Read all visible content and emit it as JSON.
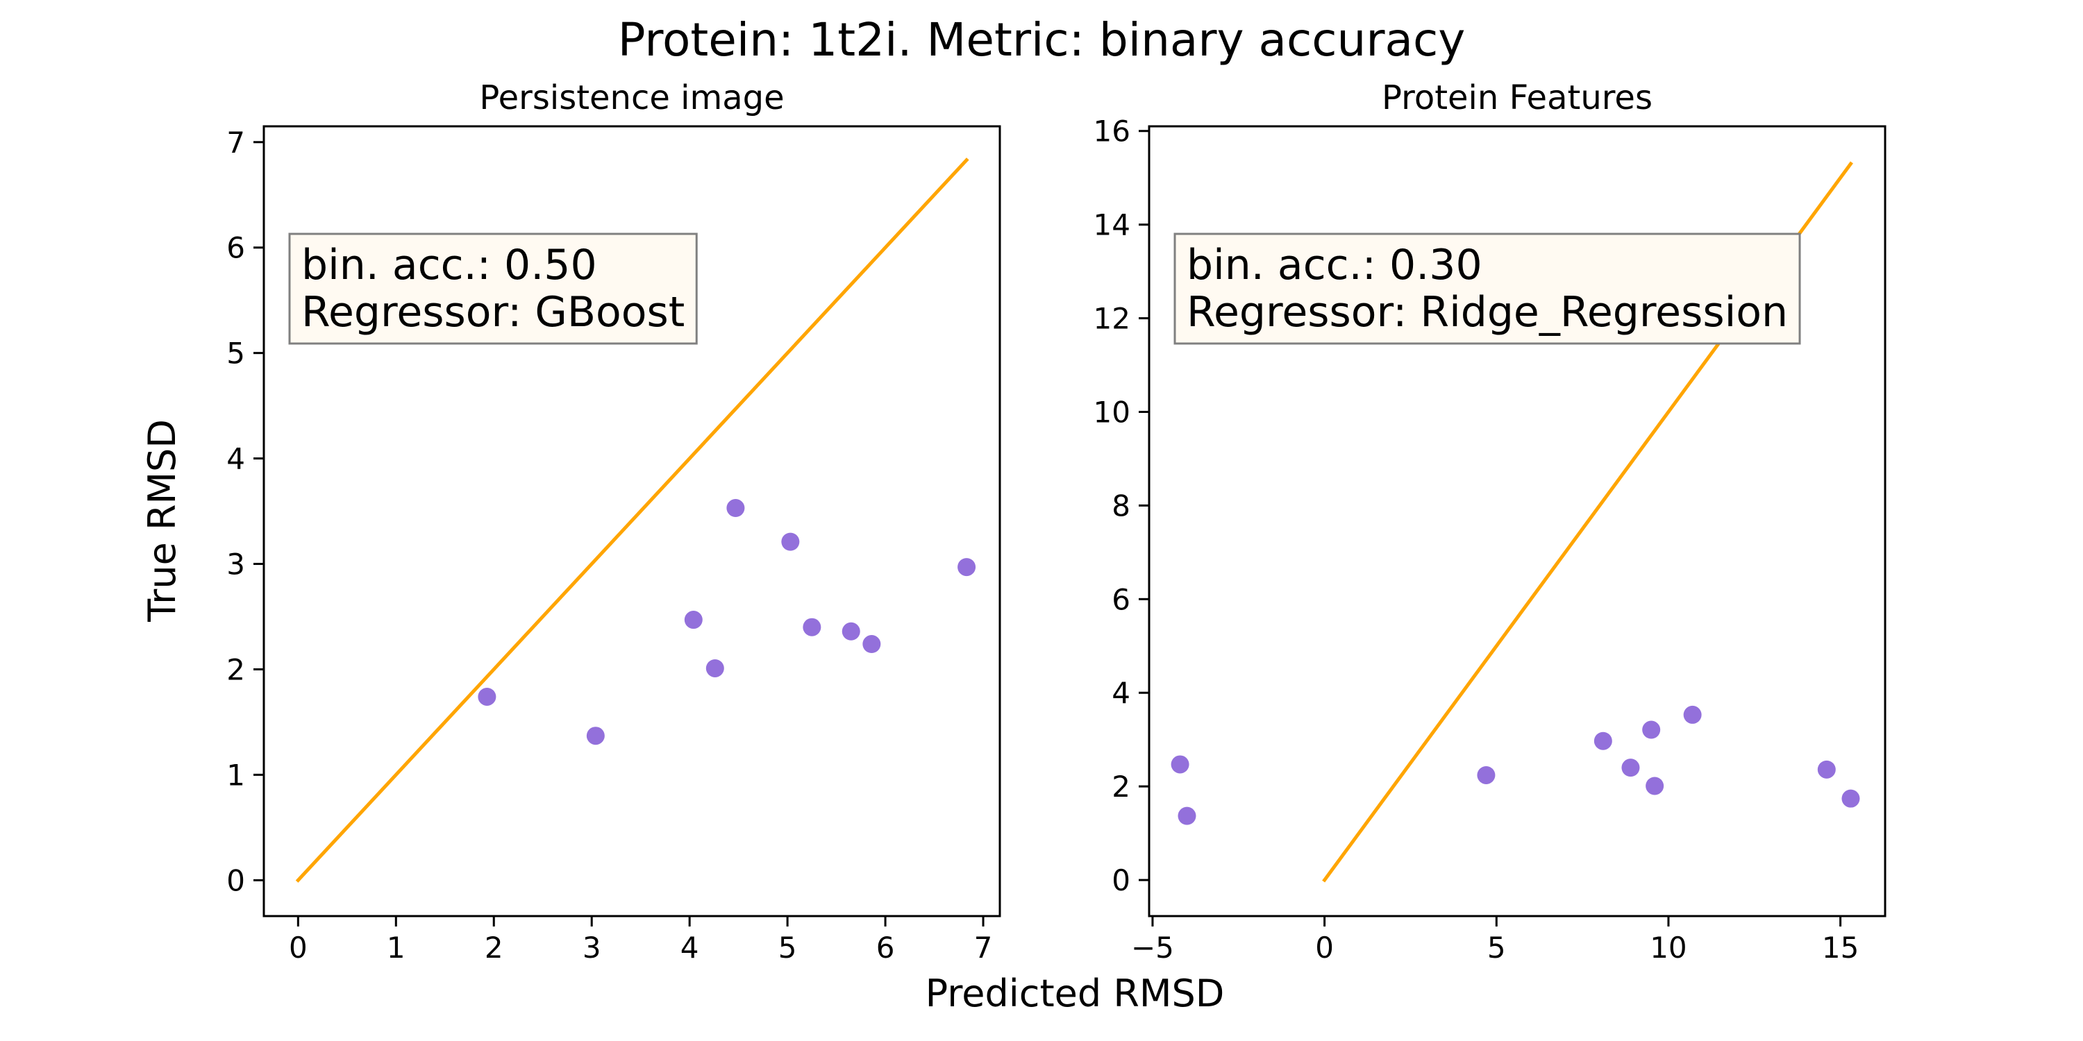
{
  "figure": {
    "suptitle": "Protein: 1t2i. Metric: binary accuracy",
    "xlabel": "Predicted RMSD",
    "ylabel": "True RMSD"
  },
  "colors": {
    "points": "#9370DB",
    "diagonal": "#FFA500",
    "box_fill": "#FFFAF2",
    "box_edge": "#808080"
  },
  "chart_data": [
    {
      "type": "scatter",
      "title": "Persistence image",
      "annotation": [
        "bin. acc.: 0.50",
        "Regressor: GBoost"
      ],
      "xlim": [
        -0.35,
        7.17
      ],
      "ylim": [
        -0.34,
        7.15
      ],
      "xticks": [
        0,
        1,
        2,
        3,
        4,
        5,
        6,
        7
      ],
      "xtick_labels": [
        "0",
        "1",
        "2",
        "3",
        "4",
        "5",
        "6",
        "7"
      ],
      "yticks": [
        0,
        1,
        2,
        3,
        4,
        5,
        6,
        7
      ],
      "ytick_labels": [
        "0",
        "1",
        "2",
        "3",
        "4",
        "5",
        "6",
        "7"
      ],
      "diagonal": [
        [
          0,
          0
        ],
        [
          6.83,
          6.83
        ]
      ],
      "x": [
        1.93,
        3.04,
        4.04,
        4.26,
        4.47,
        5.03,
        5.25,
        5.65,
        5.86,
        6.83
      ],
      "y": [
        1.74,
        1.37,
        2.47,
        2.01,
        3.53,
        3.21,
        2.4,
        2.36,
        2.24,
        2.97
      ]
    },
    {
      "type": "scatter",
      "title": "Protein Features",
      "annotation": [
        "bin. acc.: 0.30",
        "Regressor: Ridge_Regression"
      ],
      "xlim": [
        -5.1,
        16.3
      ],
      "ylim": [
        -0.77,
        16.1
      ],
      "xticks": [
        -5,
        0,
        5,
        10,
        15
      ],
      "xtick_labels": [
        "−5",
        "0",
        "5",
        "10",
        "15"
      ],
      "yticks": [
        0,
        2,
        4,
        6,
        8,
        10,
        12,
        14,
        16
      ],
      "ytick_labels": [
        "0",
        "2",
        "4",
        "6",
        "8",
        "10",
        "12",
        "14",
        "16"
      ],
      "diagonal": [
        [
          0,
          0
        ],
        [
          15.3,
          15.3
        ]
      ],
      "x": [
        -4.2,
        -4.0,
        4.7,
        8.1,
        8.9,
        9.5,
        9.6,
        10.7,
        14.6,
        15.3
      ],
      "y": [
        2.47,
        1.37,
        2.24,
        2.97,
        2.4,
        3.21,
        2.01,
        3.53,
        2.36,
        1.74
      ]
    }
  ]
}
